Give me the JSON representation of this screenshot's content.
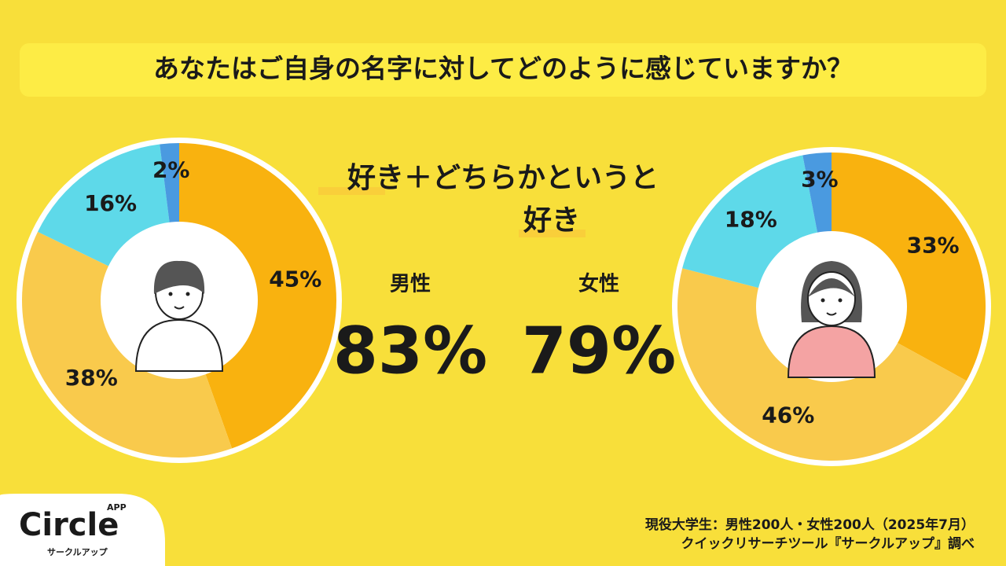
{
  "title": "あなたはご自身の名字に対してどのように感じていますか？",
  "headline": [
    "好き＋どちらかというと",
    "好き"
  ],
  "stats": [
    {
      "label": "男性",
      "value": "83%"
    },
    {
      "label": "女性",
      "value": "79%"
    }
  ],
  "footer": [
    "現役大学生：男性200人・女性200人（2025年7月）",
    "クイックリサーチツール『サークルアップ』調べ"
  ],
  "logo": {
    "name": "Circle",
    "badge": "APP",
    "kana": "サークルアップ"
  },
  "chart_data": [
    {
      "type": "pie",
      "values": [
        45,
        38,
        16,
        2
      ],
      "value_labels": [
        "45%",
        "38%",
        "16%",
        "2%"
      ],
      "colors": [
        "#f9b20f",
        "#f9ca4c",
        "#5ed9e9",
        "#4a9ae0"
      ]
    },
    {
      "type": "pie",
      "values": [
        33,
        46,
        18,
        3
      ],
      "value_labels": [
        "33%",
        "46%",
        "18%",
        "3%"
      ],
      "colors": [
        "#f9b20f",
        "#f9ca4c",
        "#5ed9e9",
        "#4a9ae0"
      ]
    }
  ]
}
